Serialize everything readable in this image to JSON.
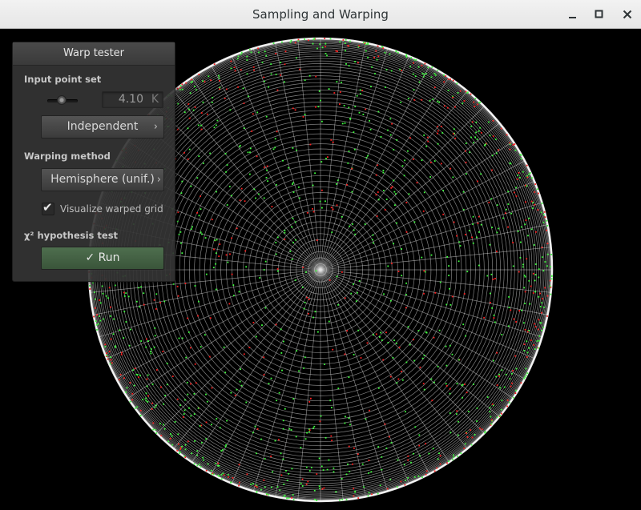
{
  "window": {
    "title": "Sampling and Warping",
    "controls": {
      "minimize": "–",
      "maximize": "□",
      "close": "✕"
    }
  },
  "panel": {
    "title": "Warp tester",
    "input_point_set_label": "Input point set",
    "point_count": {
      "value": "4.10",
      "unit": "K",
      "slider_fraction": 0.4
    },
    "point_type_button": {
      "label": "Independent",
      "chevron": "›"
    },
    "warping_method_label": "Warping method",
    "warping_method_button": {
      "label": "Hemisphere (unif.)",
      "chevron": "›"
    },
    "visualize_grid": {
      "label": "Visualize warped grid",
      "checked": true,
      "mark": "✔"
    },
    "hypothesis_test_label": "χ² hypothesis test",
    "run_button": {
      "label": "✓ Run"
    }
  },
  "visualization": {
    "colors": {
      "grid": "#e8e8e8",
      "point_early": "#ff2020",
      "point_late": "#40ff40",
      "background": "#000000"
    }
  }
}
